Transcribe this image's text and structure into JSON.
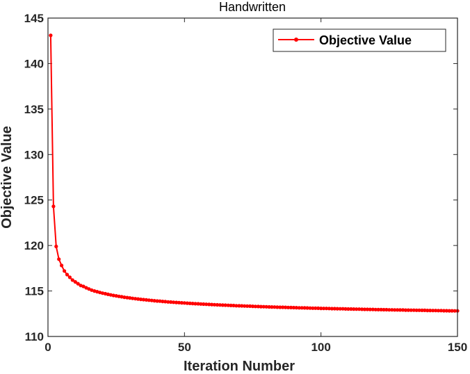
{
  "chart_data": {
    "type": "line",
    "title": "Handwritten",
    "xlabel": "Iteration Number",
    "ylabel": "Objective Value",
    "xlim": [
      0,
      150
    ],
    "ylim": [
      110,
      145
    ],
    "xticks": [
      0,
      50,
      100,
      150
    ],
    "yticks": [
      110,
      115,
      120,
      125,
      130,
      135,
      140,
      145
    ],
    "grid": false,
    "legend_position": "top-right",
    "series": [
      {
        "name": "Objective Value",
        "color": "#ff0000",
        "marker": "dot",
        "x": [
          1,
          2,
          3,
          4,
          5,
          6,
          7,
          8,
          9,
          10,
          11,
          12,
          13,
          14,
          15,
          16,
          17,
          18,
          19,
          20,
          21,
          22,
          23,
          24,
          25,
          26,
          27,
          28,
          29,
          30,
          31,
          32,
          33,
          34,
          35,
          36,
          37,
          38,
          39,
          40,
          41,
          42,
          43,
          44,
          45,
          46,
          47,
          48,
          49,
          50,
          51,
          52,
          53,
          54,
          55,
          56,
          57,
          58,
          59,
          60,
          61,
          62,
          63,
          64,
          65,
          66,
          67,
          68,
          69,
          70,
          71,
          72,
          73,
          74,
          75,
          76,
          77,
          78,
          79,
          80,
          81,
          82,
          83,
          84,
          85,
          86,
          87,
          88,
          89,
          90,
          91,
          92,
          93,
          94,
          95,
          96,
          97,
          98,
          99,
          100,
          101,
          102,
          103,
          104,
          105,
          106,
          107,
          108,
          109,
          110,
          111,
          112,
          113,
          114,
          115,
          116,
          117,
          118,
          119,
          120,
          121,
          122,
          123,
          124,
          125,
          126,
          127,
          128,
          129,
          130,
          131,
          132,
          133,
          134,
          135,
          136,
          137,
          138,
          139,
          140,
          141,
          142,
          143,
          144,
          145,
          146,
          147,
          148,
          149,
          150
        ],
        "values": [
          143.1,
          124.3,
          119.9,
          118.5,
          117.8,
          117.2,
          116.8,
          116.5,
          116.2,
          116.0,
          115.8,
          115.6,
          115.5,
          115.35,
          115.22,
          115.1,
          115.0,
          114.92,
          114.84,
          114.76,
          114.7,
          114.63,
          114.57,
          114.51,
          114.46,
          114.41,
          114.36,
          114.31,
          114.27,
          114.23,
          114.19,
          114.15,
          114.12,
          114.08,
          114.05,
          114.02,
          113.99,
          113.96,
          113.93,
          113.9,
          113.88,
          113.85,
          113.83,
          113.8,
          113.78,
          113.76,
          113.74,
          113.72,
          113.7,
          113.68,
          113.66,
          113.64,
          113.62,
          113.6,
          113.59,
          113.57,
          113.55,
          113.54,
          113.52,
          113.51,
          113.49,
          113.48,
          113.46,
          113.45,
          113.44,
          113.42,
          113.41,
          113.4,
          113.38,
          113.37,
          113.36,
          113.35,
          113.34,
          113.33,
          113.32,
          113.3,
          113.29,
          113.28,
          113.27,
          113.26,
          113.25,
          113.24,
          113.23,
          113.22,
          113.21,
          113.21,
          113.2,
          113.19,
          113.18,
          113.17,
          113.16,
          113.15,
          113.15,
          113.14,
          113.13,
          113.12,
          113.11,
          113.11,
          113.1,
          113.09,
          113.08,
          113.08,
          113.07,
          113.06,
          113.06,
          113.05,
          113.04,
          113.04,
          113.03,
          113.02,
          113.02,
          113.01,
          113.0,
          113.0,
          112.99,
          112.98,
          112.98,
          112.97,
          112.97,
          112.96,
          112.95,
          112.95,
          112.94,
          112.94,
          112.93,
          112.93,
          112.92,
          112.92,
          112.91,
          112.91,
          112.9,
          112.9,
          112.89,
          112.89,
          112.88,
          112.88,
          112.87,
          112.87,
          112.86,
          112.86,
          112.85,
          112.85,
          112.84,
          112.84,
          112.83,
          112.83,
          112.82,
          112.82,
          112.81,
          112.81
        ]
      }
    ]
  }
}
